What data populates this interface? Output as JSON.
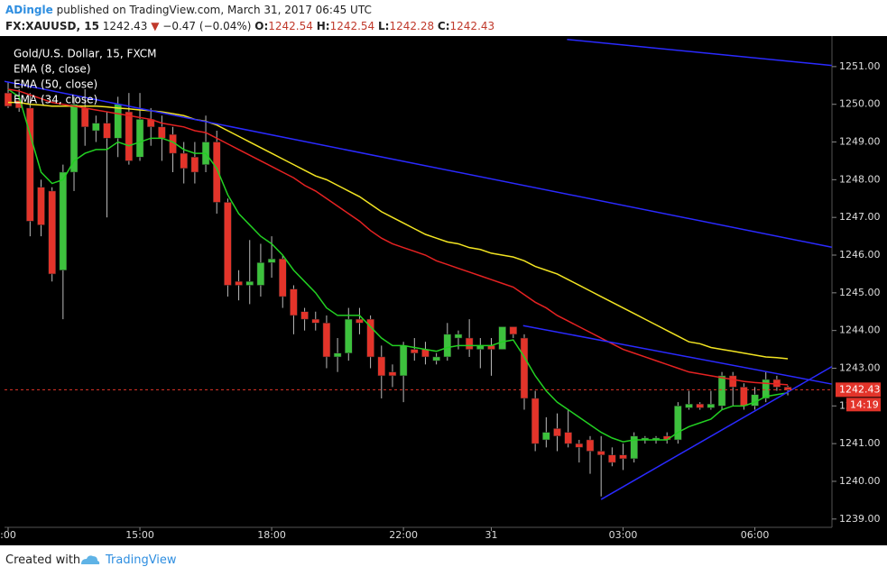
{
  "header": {
    "author": "ADingle",
    "published": "published on TradingView.com, March 31, 2017 06:45 UTC",
    "symbol": "FX:XAUUSD, 15",
    "last": "1242.43",
    "arrow": "▼",
    "change": "−0.47 (−0.04%)",
    "o_label": "O:",
    "o": "1242.54",
    "h_label": "H:",
    "h": "1242.54",
    "l_label": "L:",
    "l": "1242.28",
    "c_label": "C:",
    "c": "1242.43"
  },
  "footer": {
    "created": "Created with",
    "brand": "TradingView"
  },
  "chart_data": {
    "type": "candlestick",
    "title": "Gold/U.S. Dollar, 15, FXCM",
    "categories": [
      ":00",
      null,
      null,
      null,
      null,
      null,
      null,
      null,
      null,
      null,
      null,
      null,
      "15:00",
      null,
      null,
      null,
      null,
      null,
      null,
      null,
      null,
      null,
      null,
      null,
      "18:00",
      null,
      null,
      null,
      null,
      null,
      null,
      null,
      null,
      null,
      null,
      null,
      "22:00",
      null,
      null,
      null,
      null,
      null,
      null,
      null,
      "31",
      null,
      null,
      null,
      null,
      null,
      null,
      null,
      null,
      null,
      null,
      null,
      "03:00",
      null,
      null,
      null,
      null,
      null,
      null,
      null,
      null,
      null,
      null,
      null,
      "06:00",
      null,
      null,
      null
    ],
    "open": [
      1250.3,
      1250.1,
      1249.9,
      1247.8,
      1247.7,
      1245.6,
      1248.2,
      1249.9,
      1249.3,
      1249.5,
      1249.1,
      1249.8,
      1248.6,
      1249.6,
      1249.4,
      1249.2,
      1248.7,
      1248.6,
      1248.4,
      1249.0,
      1247.4,
      1245.3,
      1245.2,
      1245.2,
      1245.8,
      1245.9,
      1245.1,
      1244.5,
      1244.3,
      1244.2,
      1243.3,
      1243.4,
      1244.3,
      1244.3,
      1243.3,
      1242.9,
      1242.8,
      1243.5,
      1243.5,
      1243.2,
      1243.3,
      1243.8,
      1243.8,
      1243.5,
      1243.6,
      1243.5,
      1244.1,
      1243.8,
      1242.2,
      1241.1,
      1241.4,
      1241.3,
      1241.0,
      1241.1,
      1240.8,
      1240.7,
      1240.7,
      1240.6,
      1241.1,
      1241.1,
      1241.2,
      1241.1,
      1241.95,
      1242.05,
      1241.95,
      1242.0,
      1242.8,
      1242.5,
      1242.0,
      1242.2,
      1242.7,
      1242.5
    ],
    "high": [
      1250.6,
      1250.4,
      1250.3,
      1248.0,
      1247.8,
      1248.4,
      1250.2,
      1250.4,
      1249.7,
      1249.8,
      1250.2,
      1250.3,
      1250.3,
      1249.9,
      1249.7,
      1249.4,
      1249.0,
      1249.0,
      1249.7,
      1249.3,
      1247.5,
      1245.6,
      1246.4,
      1246.3,
      1246.5,
      1246.0,
      1245.2,
      1244.6,
      1244.5,
      1244.4,
      1243.8,
      1244.6,
      1244.6,
      1244.4,
      1243.6,
      1243.1,
      1243.7,
      1243.8,
      1243.7,
      1243.4,
      1244.2,
      1244.0,
      1244.3,
      1243.8,
      1243.8,
      1244.1,
      1244.1,
      1243.9,
      1242.4,
      1241.7,
      1241.8,
      1241.9,
      1241.1,
      1241.2,
      1241.2,
      1240.9,
      1241.0,
      1241.3,
      1241.2,
      1241.2,
      1241.3,
      1242.1,
      1242.4,
      1242.1,
      1242.4,
      1242.9,
      1242.9,
      1242.6,
      1242.5,
      1242.9,
      1242.8,
      1242.54
    ],
    "low": [
      1249.9,
      1249.8,
      1246.5,
      1246.5,
      1245.3,
      1244.3,
      1247.7,
      1248.9,
      1249.0,
      1247.0,
      1248.6,
      1248.4,
      1248.5,
      1248.9,
      1248.5,
      1248.2,
      1247.9,
      1247.9,
      1248.2,
      1247.1,
      1244.9,
      1244.8,
      1244.7,
      1244.9,
      1245.4,
      1244.6,
      1243.9,
      1244.0,
      1244.0,
      1243.0,
      1242.9,
      1243.2,
      1243.9,
      1243.0,
      1242.2,
      1242.5,
      1242.1,
      1243.2,
      1243.1,
      1243.1,
      1243.2,
      1243.5,
      1243.3,
      1243.0,
      1242.8,
      1243.5,
      1243.8,
      1241.9,
      1240.8,
      1240.9,
      1240.8,
      1240.9,
      1240.5,
      1240.2,
      1239.6,
      1240.4,
      1240.3,
      1240.5,
      1241.0,
      1241.0,
      1241.0,
      1241.0,
      1241.9,
      1241.9,
      1241.9,
      1241.9,
      1242.0,
      1241.9,
      1241.9,
      1242.1,
      1242.4,
      1242.28
    ],
    "close": [
      1249.95,
      1249.9,
      1246.9,
      1246.8,
      1245.5,
      1248.2,
      1250.0,
      1249.4,
      1249.5,
      1249.1,
      1250.0,
      1248.5,
      1249.6,
      1249.4,
      1249.1,
      1248.7,
      1248.3,
      1248.2,
      1249.0,
      1247.4,
      1245.2,
      1245.2,
      1245.3,
      1245.8,
      1245.9,
      1244.9,
      1244.4,
      1244.3,
      1244.2,
      1243.3,
      1243.4,
      1244.3,
      1244.2,
      1243.3,
      1242.8,
      1242.8,
      1243.6,
      1243.4,
      1243.3,
      1243.3,
      1243.9,
      1243.9,
      1243.5,
      1243.6,
      1243.5,
      1244.1,
      1243.9,
      1242.2,
      1241.0,
      1241.3,
      1241.2,
      1241.0,
      1240.9,
      1240.8,
      1240.7,
      1240.5,
      1240.6,
      1241.2,
      1241.15,
      1241.15,
      1241.1,
      1242.0,
      1242.05,
      1241.95,
      1242.05,
      1242.8,
      1242.5,
      1242.0,
      1242.3,
      1242.7,
      1242.5,
      1242.43
    ],
    "up_color": "#3dc13d",
    "down_color": "#e3342a",
    "series": [
      {
        "name": "EMA (8, close)",
        "color": "#22d022",
        "values": [
          1250.4,
          1250.2,
          1249.2,
          1248.2,
          1247.9,
          1248.0,
          1248.5,
          1248.7,
          1248.8,
          1248.8,
          1249.0,
          1248.9,
          1249.0,
          1249.1,
          1249.1,
          1249.0,
          1248.8,
          1248.7,
          1248.7,
          1248.3,
          1247.6,
          1247.1,
          1246.8,
          1246.5,
          1246.3,
          1246.0,
          1245.6,
          1245.3,
          1245.0,
          1244.6,
          1244.4,
          1244.4,
          1244.4,
          1244.1,
          1243.8,
          1243.6,
          1243.6,
          1243.55,
          1243.5,
          1243.45,
          1243.55,
          1243.6,
          1243.6,
          1243.6,
          1243.6,
          1243.7,
          1243.75,
          1243.3,
          1242.8,
          1242.4,
          1242.1,
          1241.9,
          1241.7,
          1241.5,
          1241.3,
          1241.15,
          1241.05,
          1241.1,
          1241.1,
          1241.1,
          1241.1,
          1241.3,
          1241.45,
          1241.55,
          1241.65,
          1241.9,
          1242.0,
          1242.0,
          1242.1,
          1242.25,
          1242.3,
          1242.35
        ]
      },
      {
        "name": "EMA (50, close)",
        "color": "#f2e422",
        "values": [
          1250.05,
          1250.05,
          1250.0,
          1249.98,
          1249.95,
          1249.95,
          1249.95,
          1249.95,
          1249.95,
          1249.93,
          1249.9,
          1249.88,
          1249.85,
          1249.83,
          1249.8,
          1249.75,
          1249.7,
          1249.6,
          1249.55,
          1249.45,
          1249.3,
          1249.15,
          1249.0,
          1248.85,
          1248.7,
          1248.55,
          1248.4,
          1248.25,
          1248.1,
          1248.0,
          1247.85,
          1247.7,
          1247.55,
          1247.35,
          1247.15,
          1247.0,
          1246.85,
          1246.7,
          1246.55,
          1246.45,
          1246.35,
          1246.3,
          1246.2,
          1246.15,
          1246.05,
          1246.0,
          1245.95,
          1245.85,
          1245.7,
          1245.6,
          1245.5,
          1245.35,
          1245.2,
          1245.05,
          1244.9,
          1244.75,
          1244.6,
          1244.45,
          1244.3,
          1244.15,
          1244.0,
          1243.85,
          1243.7,
          1243.65,
          1243.55,
          1243.5,
          1243.45,
          1243.4,
          1243.35,
          1243.3,
          1243.28,
          1243.25
        ]
      },
      {
        "name": "EMA (34, close)",
        "color": "#e52222",
        "values": [
          1250.4,
          1250.35,
          1250.25,
          1250.15,
          1250.05,
          1250.0,
          1249.95,
          1249.9,
          1249.85,
          1249.8,
          1249.75,
          1249.7,
          1249.65,
          1249.6,
          1249.5,
          1249.45,
          1249.4,
          1249.3,
          1249.25,
          1249.1,
          1248.95,
          1248.8,
          1248.65,
          1248.5,
          1248.35,
          1248.2,
          1248.05,
          1247.85,
          1247.7,
          1247.5,
          1247.3,
          1247.1,
          1246.9,
          1246.65,
          1246.45,
          1246.3,
          1246.2,
          1246.1,
          1246.0,
          1245.85,
          1245.75,
          1245.65,
          1245.55,
          1245.45,
          1245.35,
          1245.25,
          1245.15,
          1244.95,
          1244.75,
          1244.6,
          1244.4,
          1244.25,
          1244.1,
          1243.95,
          1243.8,
          1243.65,
          1243.5,
          1243.4,
          1243.3,
          1243.2,
          1243.1,
          1243.0,
          1242.9,
          1242.85,
          1242.8,
          1242.75,
          1242.7,
          1242.65,
          1242.62,
          1242.6,
          1242.58,
          1242.56
        ]
      }
    ],
    "trendlines": [
      {
        "color": "#2a2aff",
        "x": [
          50.9,
          75.0
        ],
        "y": [
          1251.72,
          1251.03
        ]
      },
      {
        "color": "#2a2aff",
        "x": [
          -0.33,
          75.0
        ],
        "y": [
          1250.61,
          1246.21
        ]
      },
      {
        "color": "#2a2aff",
        "x": [
          46.9,
          75.0
        ],
        "y": [
          1244.13,
          1242.58
        ]
      },
      {
        "color": "#2a2aff",
        "x": [
          54.0,
          75.0
        ],
        "y": [
          1239.52,
          1243.04
        ]
      }
    ],
    "last_price": 1242.43,
    "countdown": "14:19",
    "ylim": [
      1238.78,
      1251.81
    ],
    "yticks": [
      {
        "value": 1239,
        "label": "1239.00"
      },
      {
        "value": 1240,
        "label": "1240.00"
      },
      {
        "value": 1241,
        "label": "1241.00"
      },
      {
        "value": 1242,
        "label": "1242.00"
      },
      {
        "value": 1243,
        "label": "1243.00"
      },
      {
        "value": 1244,
        "label": "1244.00"
      },
      {
        "value": 1245,
        "label": "1245.00"
      },
      {
        "value": 1246,
        "label": "1246.00"
      },
      {
        "value": 1247,
        "label": "1247.00"
      },
      {
        "value": 1248,
        "label": "1248.00"
      },
      {
        "value": 1249,
        "label": "1249.00"
      },
      {
        "value": 1250,
        "label": "1250.00"
      },
      {
        "value": 1251,
        "label": "1251.00"
      }
    ]
  }
}
